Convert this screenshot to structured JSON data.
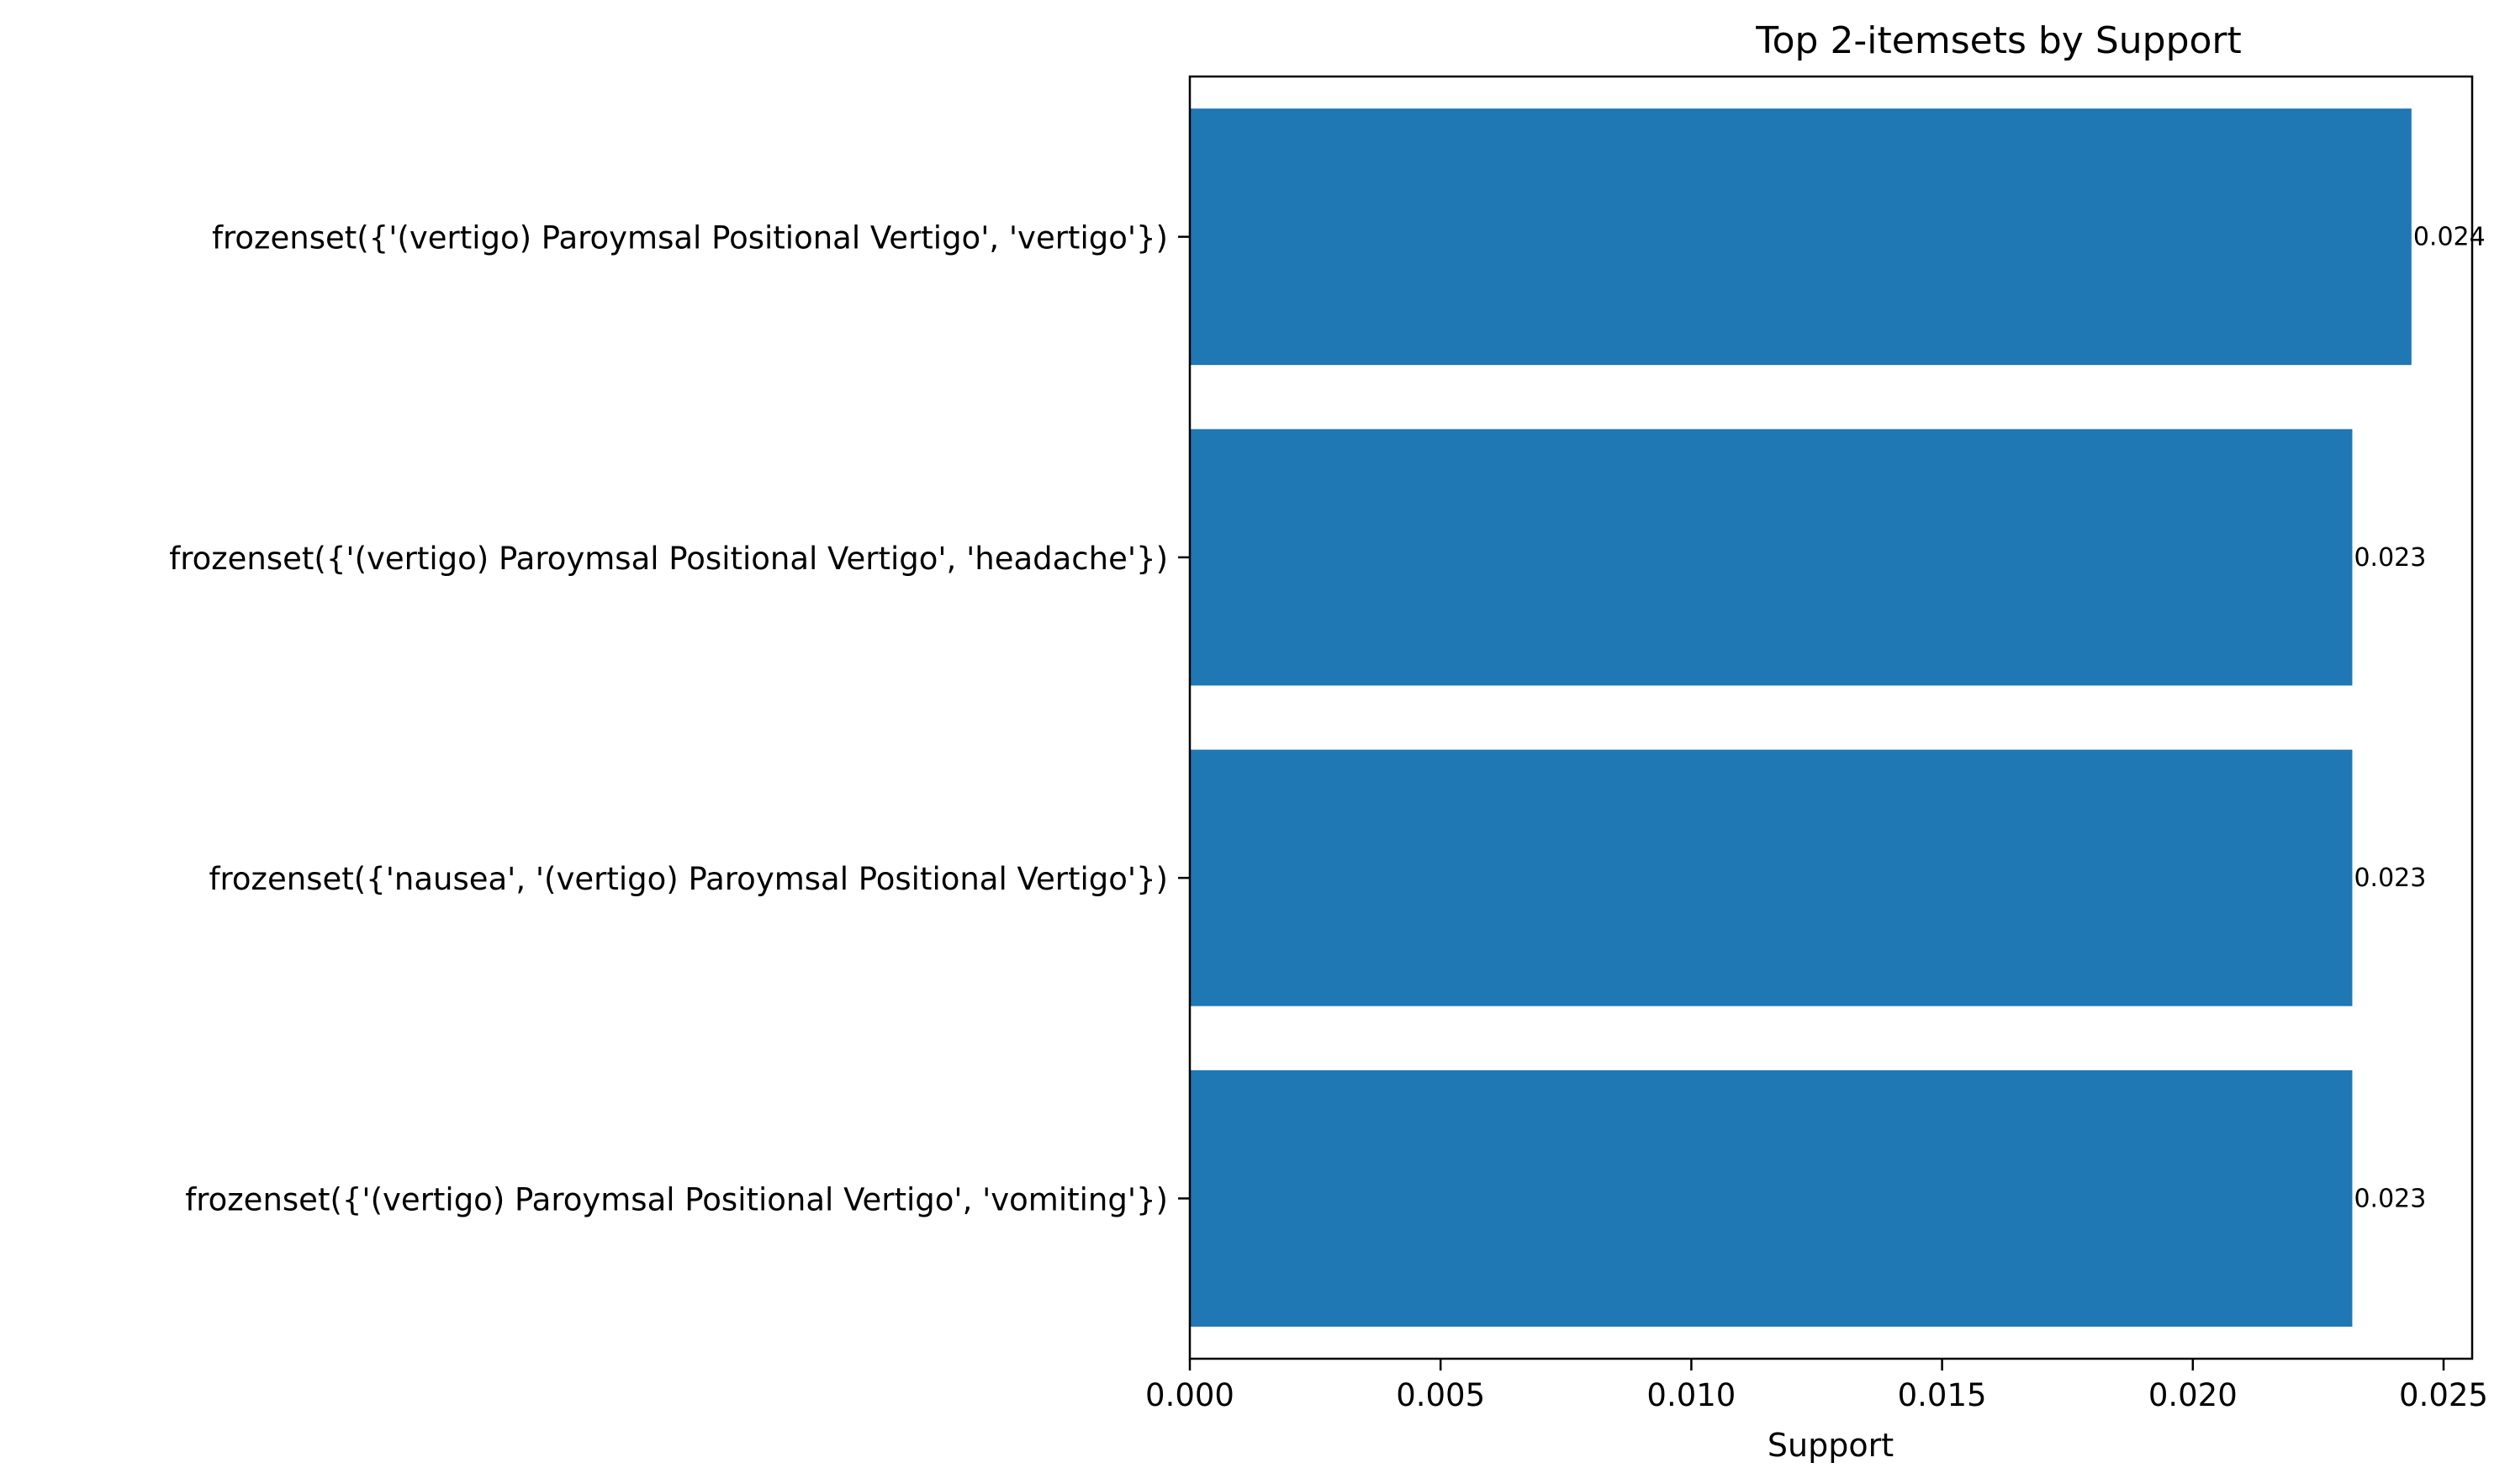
{
  "chart_data": {
    "type": "bar",
    "orientation": "horizontal",
    "title": "Top 2-itemsets by Support",
    "xlabel": "Support",
    "ylabel": "",
    "xlim": [
      0,
      0.02557
    ],
    "xticks": [
      0.0,
      0.005,
      0.01,
      0.015,
      0.02,
      0.025
    ],
    "xtick_labels": [
      "0.000",
      "0.005",
      "0.010",
      "0.015",
      "0.020",
      "0.025"
    ],
    "categories": [
      "frozenset({'(vertigo) Paroymsal  Positional Vertigo', 'vertigo'})",
      "frozenset({'(vertigo) Paroymsal  Positional Vertigo', 'headache'})",
      "frozenset({'nausea', '(vertigo) Paroymsal  Positional Vertigo'})",
      "frozenset({'(vertigo) Paroymsal  Positional Vertigo', 'vomiting'})"
    ],
    "values": [
      0.02436,
      0.02318,
      0.02318,
      0.02318
    ],
    "value_labels": [
      "0.024",
      "0.023",
      "0.023",
      "0.023"
    ],
    "bar_color": "#1f77b4",
    "grid": false,
    "legend": "none"
  }
}
